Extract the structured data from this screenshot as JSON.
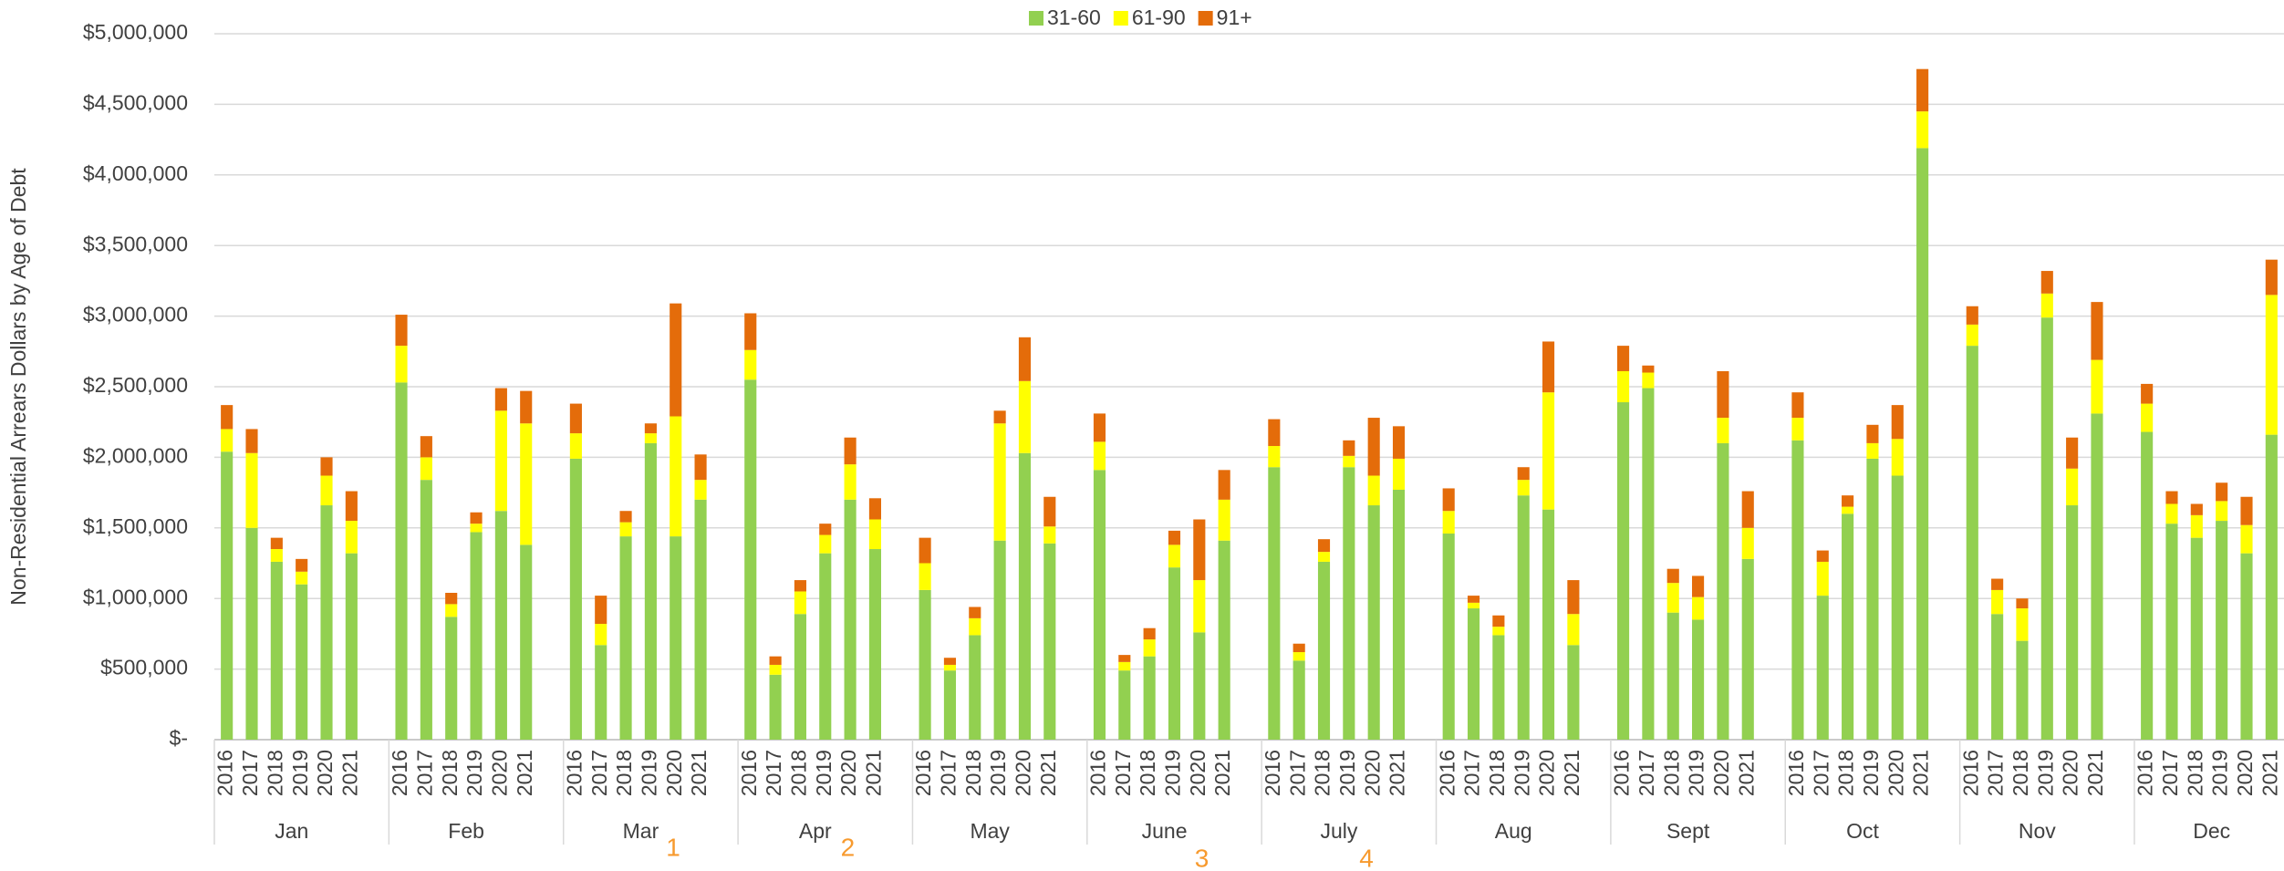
{
  "chart_data": {
    "type": "bar",
    "stacked": true,
    "ylabel": "Non-Residential Arrears Dollars by Age of Debt",
    "groups": [
      "Jan",
      "Feb",
      "Mar",
      "Apr",
      "May",
      "June",
      "July",
      "Aug",
      "Sept",
      "Oct",
      "Nov",
      "Dec"
    ],
    "categories": [
      "2016",
      "2017",
      "2018",
      "2019",
      "2020",
      "2021",
      "2016",
      "2017",
      "2018",
      "2019",
      "2020",
      "2021",
      "2016",
      "2017",
      "2018",
      "2019",
      "2020",
      "2021",
      "2016",
      "2017",
      "2018",
      "2019",
      "2020",
      "2021",
      "2016",
      "2017",
      "2018",
      "2019",
      "2020",
      "2021",
      "2016",
      "2017",
      "2018",
      "2019",
      "2020",
      "2021",
      "2016",
      "2017",
      "2018",
      "2019",
      "2020",
      "2021",
      "2016",
      "2017",
      "2018",
      "2019",
      "2020",
      "2021",
      "2016",
      "2017",
      "2018",
      "2019",
      "2020",
      "2021",
      "2016",
      "2017",
      "2018",
      "2019",
      "2020",
      "2021",
      "2016",
      "2017",
      "2018",
      "2019",
      "2020",
      "2021",
      "2016",
      "2017",
      "2018",
      "2019",
      "2020",
      "2021"
    ],
    "series": [
      {
        "name": "31-60",
        "color": "#92d050",
        "values": [
          2040000,
          1500000,
          1260000,
          1100000,
          1660000,
          1320000,
          2530000,
          1840000,
          870000,
          1470000,
          1620000,
          1380000,
          1990000,
          670000,
          1440000,
          2100000,
          1440000,
          1700000,
          2550000,
          460000,
          890000,
          1320000,
          1700000,
          1350000,
          1060000,
          490000,
          740000,
          1410000,
          2030000,
          1390000,
          1910000,
          490000,
          590000,
          1220000,
          760000,
          1410000,
          1930000,
          560000,
          1260000,
          1930000,
          1660000,
          1770000,
          1460000,
          930000,
          740000,
          1730000,
          1630000,
          670000,
          2390000,
          2490000,
          900000,
          850000,
          2100000,
          1280000,
          2120000,
          1020000,
          1600000,
          1990000,
          1870000,
          4190000,
          2790000,
          890000,
          700000,
          2990000,
          1660000,
          2310000,
          2180000,
          1530000,
          1430000,
          1550000,
          1320000,
          2160000
        ]
      },
      {
        "name": "61-90",
        "color": "#ffff00",
        "values": [
          160000,
          530000,
          90000,
          90000,
          210000,
          230000,
          260000,
          160000,
          90000,
          60000,
          710000,
          860000,
          180000,
          150000,
          100000,
          70000,
          850000,
          140000,
          210000,
          70000,
          160000,
          130000,
          250000,
          210000,
          190000,
          40000,
          120000,
          830000,
          510000,
          120000,
          200000,
          60000,
          120000,
          160000,
          370000,
          290000,
          150000,
          60000,
          70000,
          80000,
          210000,
          220000,
          160000,
          40000,
          60000,
          110000,
          830000,
          220000,
          220000,
          110000,
          210000,
          160000,
          180000,
          220000,
          160000,
          240000,
          50000,
          110000,
          260000,
          260000,
          150000,
          170000,
          230000,
          170000,
          260000,
          380000,
          200000,
          140000,
          160000,
          140000,
          200000,
          990000
        ]
      },
      {
        "name": "91+",
        "color": "#e46c0a",
        "values": [
          170000,
          170000,
          80000,
          90000,
          130000,
          210000,
          220000,
          150000,
          80000,
          80000,
          160000,
          230000,
          210000,
          200000,
          80000,
          70000,
          800000,
          180000,
          260000,
          60000,
          80000,
          80000,
          190000,
          150000,
          180000,
          50000,
          80000,
          90000,
          310000,
          210000,
          200000,
          50000,
          80000,
          100000,
          430000,
          210000,
          190000,
          60000,
          90000,
          110000,
          410000,
          230000,
          160000,
          50000,
          80000,
          90000,
          360000,
          240000,
          180000,
          50000,
          100000,
          150000,
          330000,
          260000,
          180000,
          80000,
          80000,
          130000,
          240000,
          300000,
          130000,
          80000,
          70000,
          160000,
          220000,
          410000,
          140000,
          90000,
          80000,
          130000,
          200000,
          250000
        ]
      }
    ],
    "ylim": [
      0,
      5000000
    ],
    "yticks": [
      {
        "value": 0,
        "label": "$-"
      },
      {
        "value": 500000,
        "label": "$500,000"
      },
      {
        "value": 1000000,
        "label": "$1,000,000"
      },
      {
        "value": 1500000,
        "label": "$1,500,000"
      },
      {
        "value": 2000000,
        "label": "$2,000,000"
      },
      {
        "value": 2500000,
        "label": "$2,500,000"
      },
      {
        "value": 3000000,
        "label": "$3,000,000"
      },
      {
        "value": 3500000,
        "label": "$3,500,000"
      },
      {
        "value": 4000000,
        "label": "$4,000,000"
      },
      {
        "value": 4500000,
        "label": "$4,500,000"
      },
      {
        "value": 5000000,
        "label": "$5,000,000"
      }
    ],
    "grid": true,
    "legend": "top",
    "annotations": [
      "1",
      "2",
      "3",
      "4"
    ]
  }
}
